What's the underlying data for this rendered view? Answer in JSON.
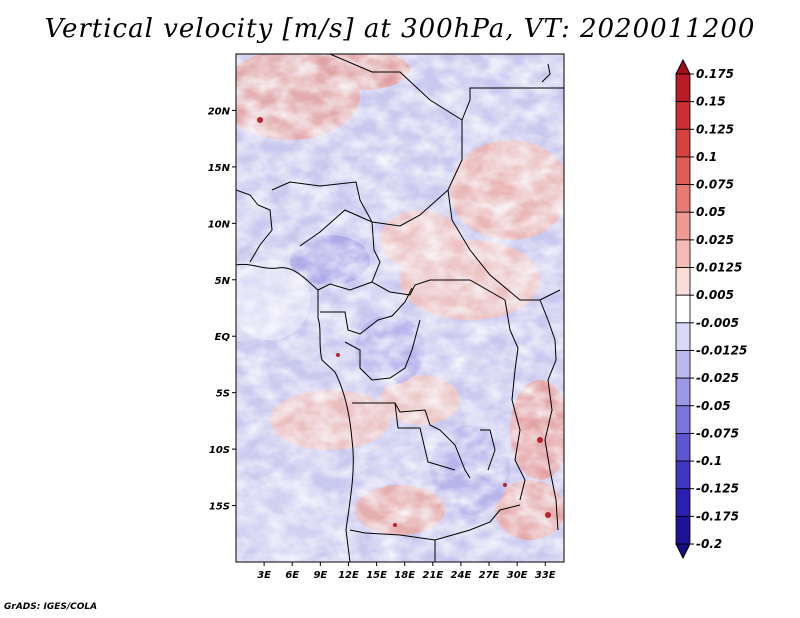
{
  "title": "Vertical velocity [m/s] at 300hPa, VT: 2020011200",
  "footer": "GrADS: IGES/COLA",
  "map": {
    "lat_ticks": [
      "20N",
      "15N",
      "10N",
      "5N",
      "EQ",
      "5S",
      "10S",
      "15S"
    ],
    "lon_ticks": [
      "3E",
      "6E",
      "9E",
      "12E",
      "15E",
      "18E",
      "21E",
      "24E",
      "27E",
      "30E",
      "33E"
    ],
    "lon_range": [
      0,
      35
    ],
    "lat_range": [
      -20,
      25
    ]
  },
  "colorbar": {
    "labels": [
      "0.175",
      "0.15",
      "0.125",
      "0.1",
      "0.075",
      "0.05",
      "0.025",
      "0.0125",
      "0.005",
      "-0.005",
      "-0.0125",
      "-0.025",
      "-0.05",
      "-0.075",
      "-0.1",
      "-0.125",
      "-0.175",
      "-0.2"
    ],
    "colors": [
      "#a50d1e",
      "#b81c26",
      "#c92f33",
      "#d6423f",
      "#e05c57",
      "#e77a73",
      "#ef9a92",
      "#f5bcb6",
      "#fadcd8",
      "#ffffff",
      "#d9d8f6",
      "#bbb8ef",
      "#9c97e6",
      "#7d76dc",
      "#5e55d0",
      "#4036c2",
      "#2a1fb0",
      "#1f1296",
      "#170c80"
    ]
  }
}
